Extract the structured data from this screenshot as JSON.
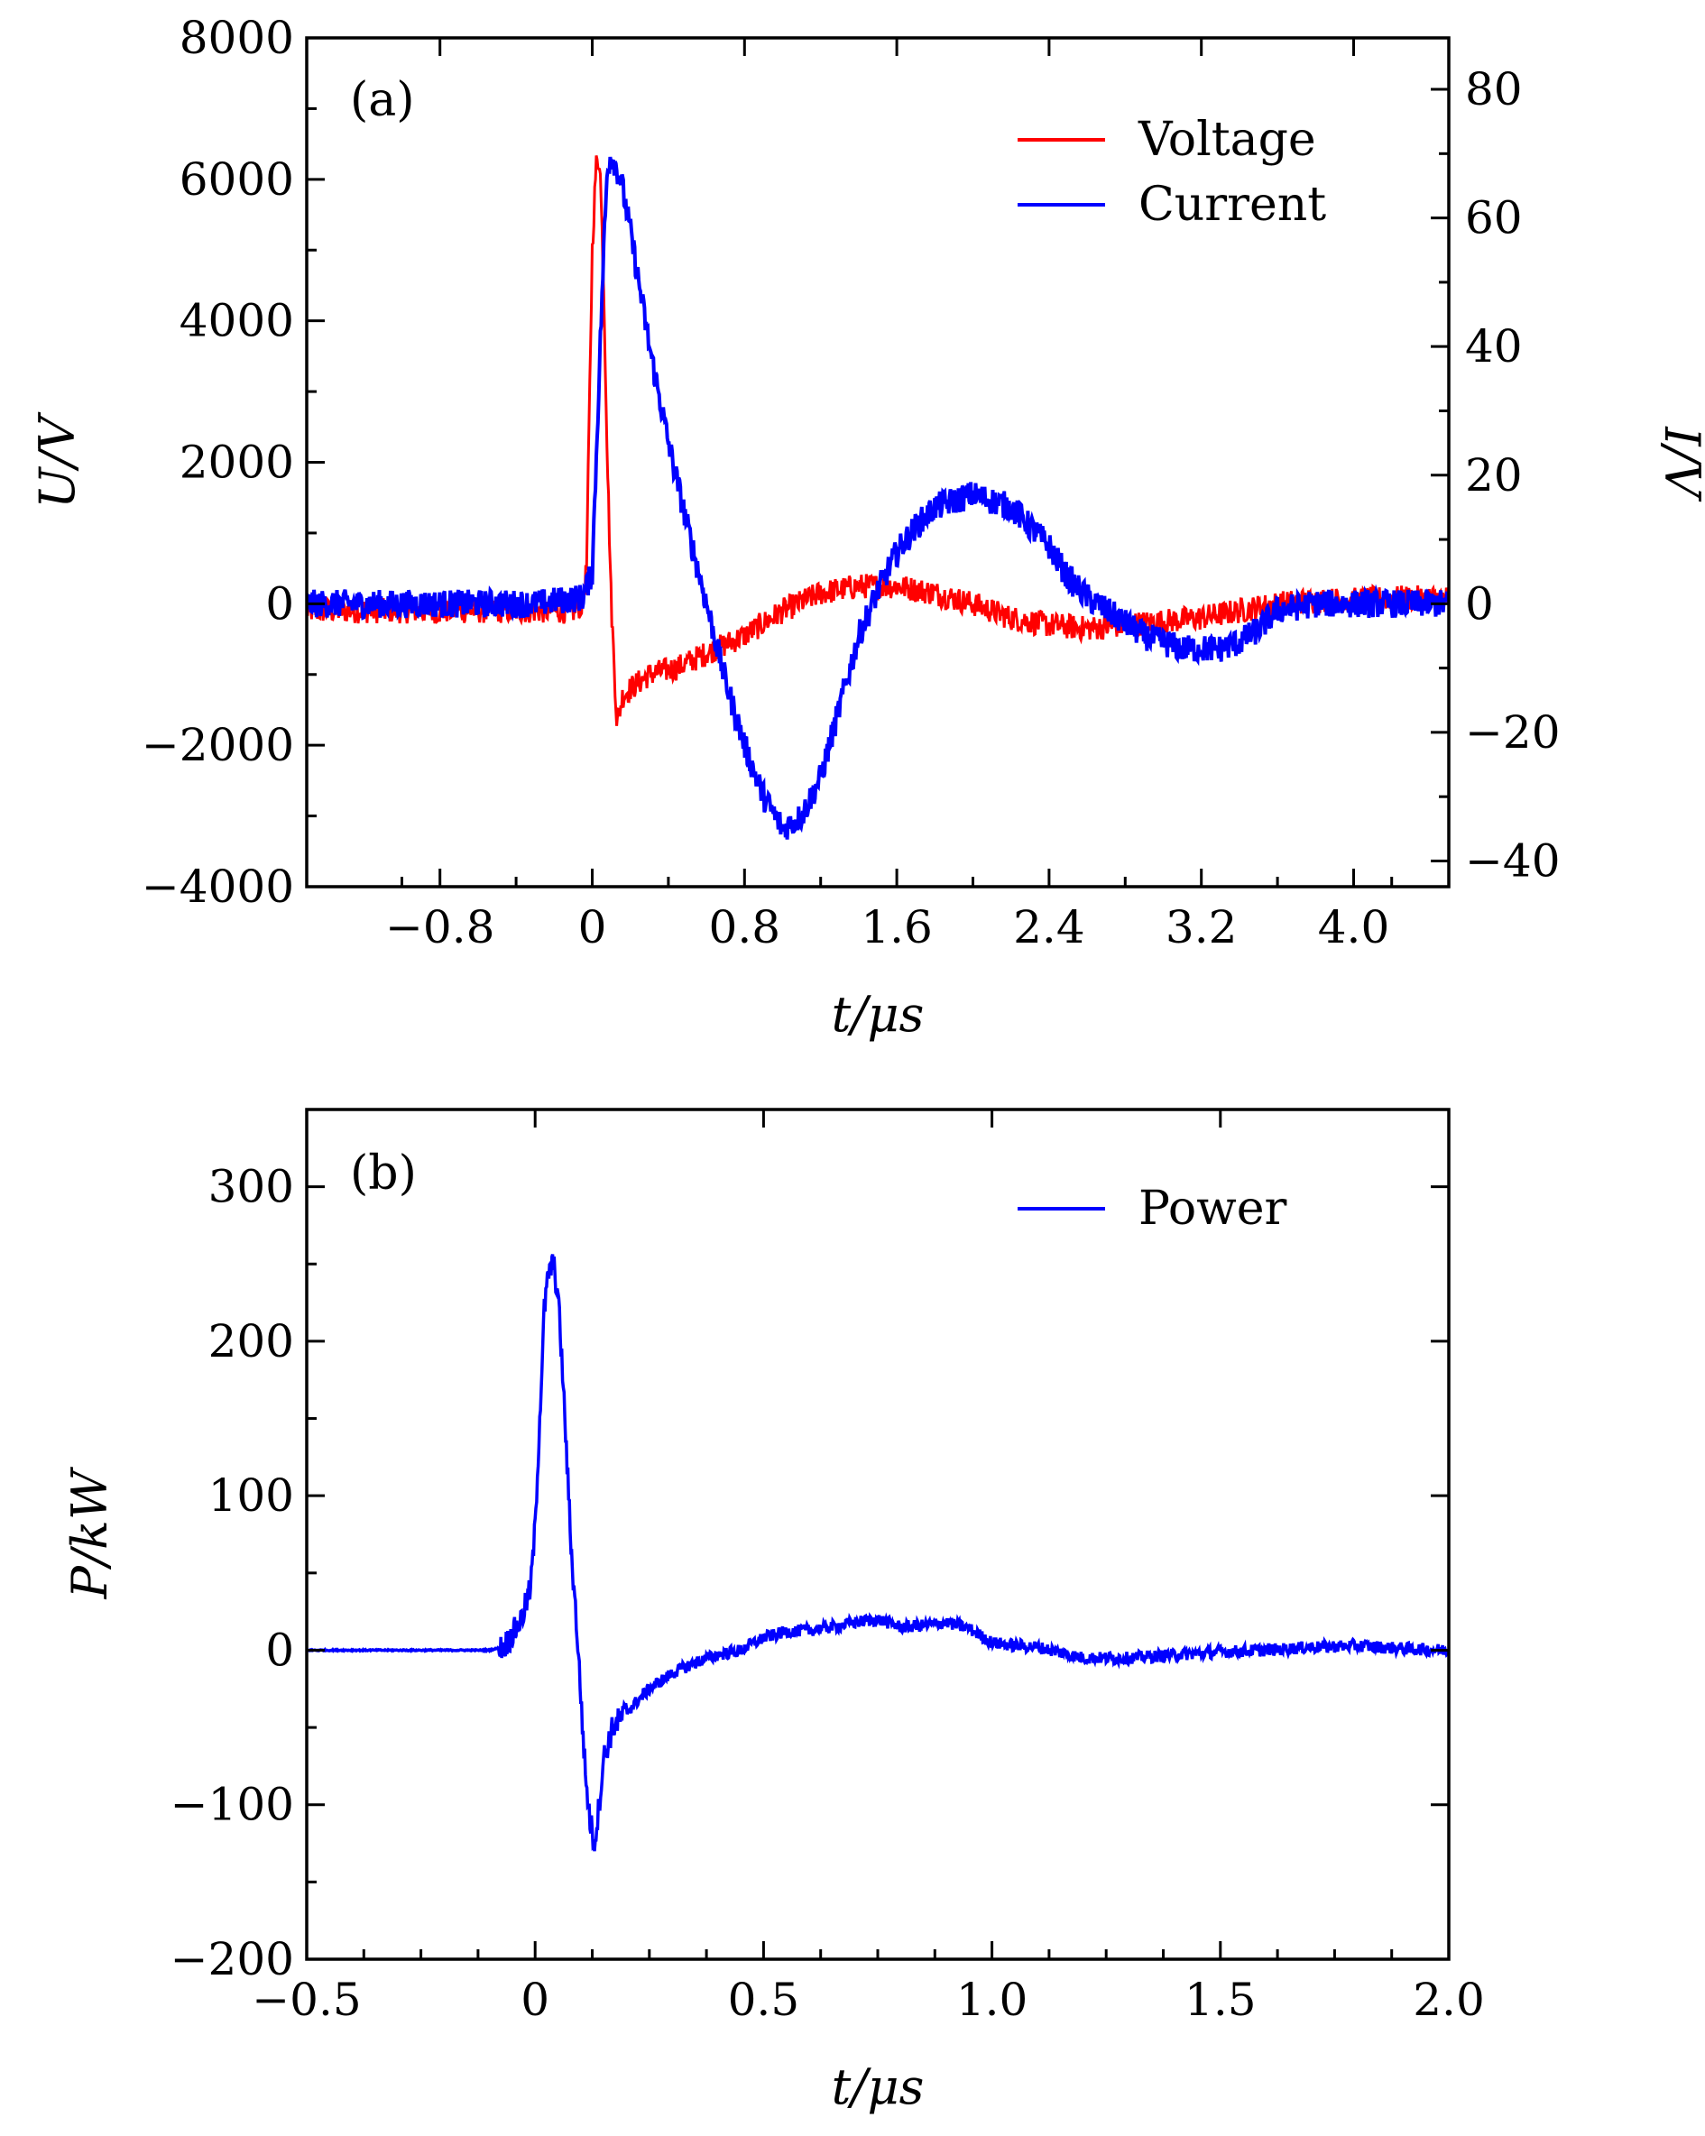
{
  "chart_data": [
    {
      "type": "line",
      "panel_label": "(a)",
      "xlabel": "t/μs",
      "ylabel_left": "U/V",
      "ylabel_right": "I/V",
      "xlim": [
        -1.5,
        4.5
      ],
      "ylim_left": [
        -4000,
        8000
      ],
      "ylim_right": [
        -44,
        88
      ],
      "x_ticks": [
        -0.8,
        0,
        0.8,
        1.6,
        2.4,
        3.2,
        4.0
      ],
      "x_tick_labels": [
        "−0.8",
        "0",
        "0.8",
        "1.6",
        "2.4",
        "3.2",
        "4.0"
      ],
      "y_ticks_left": [
        -4000,
        -2000,
        0,
        2000,
        4000,
        6000,
        8000
      ],
      "y_tick_labels_left": [
        "−4000",
        "−2000",
        "0",
        "2000",
        "4000",
        "6000",
        "8000"
      ],
      "y_ticks_right": [
        -40,
        -20,
        0,
        20,
        40,
        60,
        80
      ],
      "y_tick_labels_right": [
        "−40",
        "−20",
        "0",
        "20",
        "40",
        "60",
        "80"
      ],
      "legend_position": "top-right",
      "grid": false,
      "series": [
        {
          "name": "Voltage",
          "color": "#ff0000",
          "axis": "left",
          "x": [
            -1.5,
            -1.2,
            -0.9,
            -0.6,
            -0.3,
            -0.1,
            -0.05,
            -0.03,
            0,
            0.02,
            0.04,
            0.06,
            0.08,
            0.1,
            0.13,
            0.16,
            0.2,
            0.3,
            0.45,
            0.6,
            0.8,
            1.0,
            1.2,
            1.4,
            1.6,
            1.8,
            2.0,
            2.2,
            2.4,
            2.6,
            2.8,
            3.0,
            3.2,
            3.4,
            3.6,
            3.8,
            4.0,
            4.2,
            4.5
          ],
          "y": [
            -100,
            -100,
            -100,
            -100,
            -100,
            -100,
            0,
            500,
            5000,
            6200,
            6300,
            4500,
            2000,
            0,
            -1700,
            -1300,
            -1200,
            -1000,
            -900,
            -700,
            -450,
            -100,
            150,
            250,
            250,
            150,
            0,
            -200,
            -300,
            -350,
            -300,
            -250,
            -200,
            -100,
            0,
            50,
            50,
            80,
            80
          ]
        },
        {
          "name": "Current",
          "color": "#0000ff",
          "axis": "right",
          "x": [
            -1.5,
            -1.2,
            -0.9,
            -0.6,
            -0.3,
            -0.05,
            0,
            0.03,
            0.06,
            0.08,
            0.1,
            0.15,
            0.2,
            0.3,
            0.4,
            0.5,
            0.6,
            0.7,
            0.8,
            0.9,
            1.0,
            1.1,
            1.2,
            1.3,
            1.4,
            1.5,
            1.6,
            1.7,
            1.8,
            1.9,
            2.0,
            2.1,
            2.2,
            2.3,
            2.4,
            2.5,
            2.6,
            2.7,
            2.8,
            2.9,
            3.0,
            3.1,
            3.2,
            3.3,
            3.4,
            3.5,
            3.6,
            3.8,
            4.0,
            4.2,
            4.5
          ],
          "y": [
            0,
            0,
            0,
            0,
            0,
            1,
            5,
            30,
            55,
            68,
            70,
            66,
            58,
            40,
            25,
            12,
            0,
            -12,
            -22,
            -30,
            -35,
            -33,
            -27,
            -16,
            -5,
            2,
            8,
            12,
            15,
            16,
            17,
            16,
            15,
            12,
            9,
            4,
            1,
            -1,
            -3,
            -5,
            -6,
            -7,
            -7,
            -7,
            -6,
            -4,
            -1,
            0,
            0,
            0,
            0
          ]
        }
      ]
    },
    {
      "type": "line",
      "panel_label": "(b)",
      "xlabel": "t/μs",
      "ylabel": "P/kW",
      "xlim": [
        -0.5,
        2.0
      ],
      "ylim": [
        -200,
        350
      ],
      "x_ticks": [
        -0.5,
        0,
        0.5,
        1.0,
        1.5,
        2.0
      ],
      "x_tick_labels": [
        "−0.5",
        "0",
        "0.5",
        "1.0",
        "1.5",
        "2.0"
      ],
      "y_ticks": [
        -200,
        -100,
        0,
        100,
        200,
        300
      ],
      "y_tick_labels": [
        "−200",
        "−100",
        "0",
        "100",
        "200",
        "300"
      ],
      "legend_position": "top-right",
      "grid": false,
      "series": [
        {
          "name": "Power",
          "color": "#0000ff",
          "x": [
            -0.5,
            -0.3,
            -0.1,
            -0.07,
            -0.05,
            -0.03,
            -0.01,
            0.0,
            0.01,
            0.02,
            0.03,
            0.04,
            0.05,
            0.06,
            0.07,
            0.08,
            0.09,
            0.1,
            0.11,
            0.12,
            0.13,
            0.14,
            0.15,
            0.17,
            0.2,
            0.25,
            0.3,
            0.35,
            0.4,
            0.45,
            0.5,
            0.55,
            0.6,
            0.65,
            0.7,
            0.75,
            0.8,
            0.85,
            0.9,
            0.95,
            1.0,
            1.05,
            1.1,
            1.2,
            1.3,
            1.4,
            1.5,
            1.6,
            1.7,
            1.8,
            1.9,
            2.0
          ],
          "y": [
            0,
            0,
            0,
            2,
            10,
            20,
            40,
            80,
            150,
            220,
            245,
            250,
            230,
            180,
            120,
            60,
            20,
            -30,
            -80,
            -110,
            -125,
            -100,
            -70,
            -50,
            -40,
            -25,
            -15,
            -8,
            -3,
            0,
            8,
            12,
            13,
            15,
            18,
            20,
            15,
            16,
            18,
            14,
            5,
            3,
            2,
            -5,
            -5,
            -3,
            -1,
            0,
            2,
            3,
            1,
            0
          ]
        }
      ]
    }
  ]
}
